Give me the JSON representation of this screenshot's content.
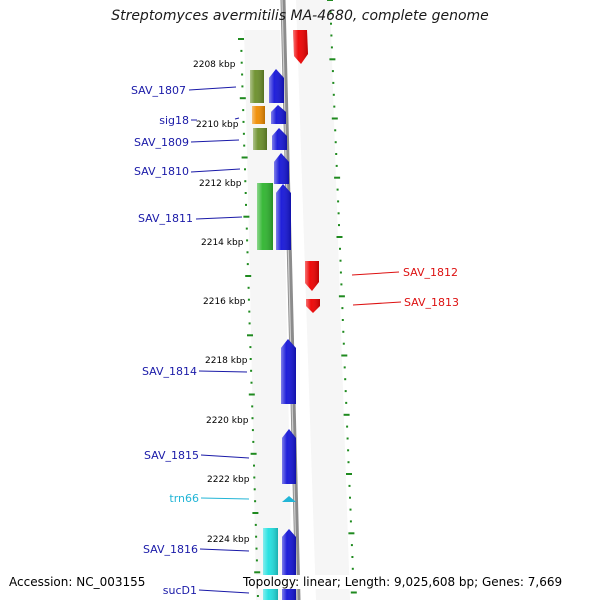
{
  "title": "Streptomyces avermitilis MA-4680, complete genome",
  "accession": "Accession: NC_003155",
  "summary": "Topology: linear; Length: 9,025,608 bp; Genes: 7,669",
  "colors": {
    "tick": "#1f8a1f",
    "backbone": "#8c8c8c",
    "strand_panel": "#f6f6f6",
    "label_forward": "#1a1aa8",
    "label_reverse": "#dd1111",
    "label_trna": "#22b5d6",
    "background": "#ffffff"
  },
  "scale_labels": [
    {
      "kbp": 2208,
      "text": "2208 kbp"
    },
    {
      "kbp": 2210,
      "text": "2210 kbp"
    },
    {
      "kbp": 2212,
      "text": "2212 kbp"
    },
    {
      "kbp": 2214,
      "text": "2214 kbp"
    },
    {
      "kbp": 2216,
      "text": "2216 kbp"
    },
    {
      "kbp": 2218,
      "text": "2218 kbp"
    },
    {
      "kbp": 2220,
      "text": "2220 kbp"
    },
    {
      "kbp": 2222,
      "text": "2222 kbp"
    },
    {
      "kbp": 2224,
      "text": "2224 kbp"
    }
  ],
  "genes": [
    {
      "label": "SAV_1807",
      "strand": "forward",
      "label_color": "#1a1aa8",
      "feature_colors": [
        "#6b8f2a",
        "#1515d8"
      ]
    },
    {
      "label": "sig18",
      "strand": "forward",
      "label_color": "#1a1aa8",
      "feature_colors": [
        "#f08c00",
        "#1515d8"
      ]
    },
    {
      "label": "SAV_1809",
      "strand": "forward",
      "label_color": "#1a1aa8",
      "feature_colors": [
        "#6b8f2a",
        "#1515d8"
      ]
    },
    {
      "label": "SAV_1810",
      "strand": "forward",
      "label_color": "#1a1aa8",
      "feature_colors": [
        "#1515d8"
      ]
    },
    {
      "label": "SAV_1811",
      "strand": "forward",
      "label_color": "#1a1aa8",
      "feature_colors": [
        "#2fb52f",
        "#1515d8"
      ]
    },
    {
      "label": "SAV_1812",
      "strand": "reverse",
      "label_color": "#dd1111",
      "feature_colors": [
        "#ee0000"
      ]
    },
    {
      "label": "SAV_1813",
      "strand": "reverse",
      "label_color": "#dd1111",
      "feature_colors": [
        "#ee0000"
      ]
    },
    {
      "label": "SAV_1814",
      "strand": "forward",
      "label_color": "#1a1aa8",
      "feature_colors": [
        "#1515d8"
      ]
    },
    {
      "label": "SAV_1815",
      "strand": "forward",
      "label_color": "#1a1aa8",
      "feature_colors": [
        "#1515d8"
      ]
    },
    {
      "label": "trn66",
      "strand": "forward",
      "label_color": "#22b5d6",
      "feature_colors": [
        "#22b5d6"
      ]
    },
    {
      "label": "SAV_1816",
      "strand": "forward",
      "label_color": "#1a1aa8",
      "feature_colors": [
        "#20e0e0",
        "#1515d8"
      ]
    },
    {
      "label": "sucD1",
      "strand": "forward",
      "label_color": "#1a1aa8",
      "feature_colors": [
        "#20e0e0",
        "#1515d8"
      ]
    }
  ],
  "unlabeled_features": [
    {
      "strand": "reverse",
      "color": "#ee0000"
    }
  ]
}
